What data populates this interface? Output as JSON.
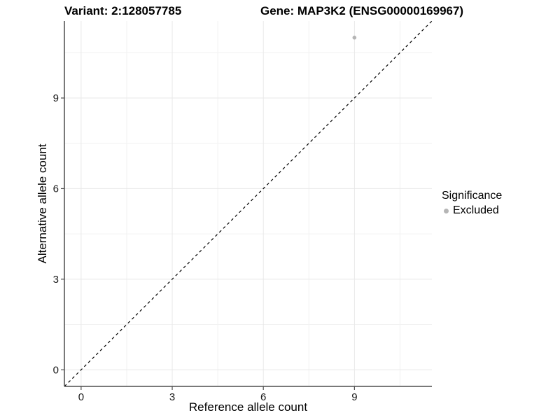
{
  "chart_data": {
    "type": "scatter",
    "titles": {
      "left": "Variant: 2:128057785",
      "right": "Gene: MAP3K2 (ENSG00000169967)"
    },
    "xlabel": "Reference allele count",
    "ylabel": "Alternative allele count",
    "xlim": [
      -0.55,
      11.55
    ],
    "ylim": [
      -0.55,
      11.55
    ],
    "x_ticks": [
      0,
      3,
      6,
      9
    ],
    "y_ticks": [
      0,
      3,
      6,
      9
    ],
    "x_minor_ticks": [
      1.5,
      4.5,
      7.5,
      10.5
    ],
    "y_minor_ticks": [
      1.5,
      4.5,
      7.5,
      10.5
    ],
    "grid": "major+minor",
    "series": [
      {
        "name": "Excluded",
        "marker": "circle",
        "color": "#b5b5b5",
        "points": [
          {
            "x": 9,
            "y": 11
          }
        ]
      }
    ],
    "reference_line": {
      "slope": 1,
      "intercept": 0,
      "linestyle": "dashed",
      "color": "#000000"
    },
    "legend": {
      "title": "Significance",
      "position": "right",
      "items": [
        {
          "label": "Excluded",
          "color": "#b5b5b5",
          "marker": "circle"
        }
      ]
    },
    "colors": {
      "background": "#ffffff",
      "grid_major": "#e8e8e8",
      "grid_minor": "#f1f1f1",
      "axis_line": "#4d4d4d",
      "tick_mark": "#4d4d4d",
      "tick_text": "#1a1a1a"
    }
  }
}
